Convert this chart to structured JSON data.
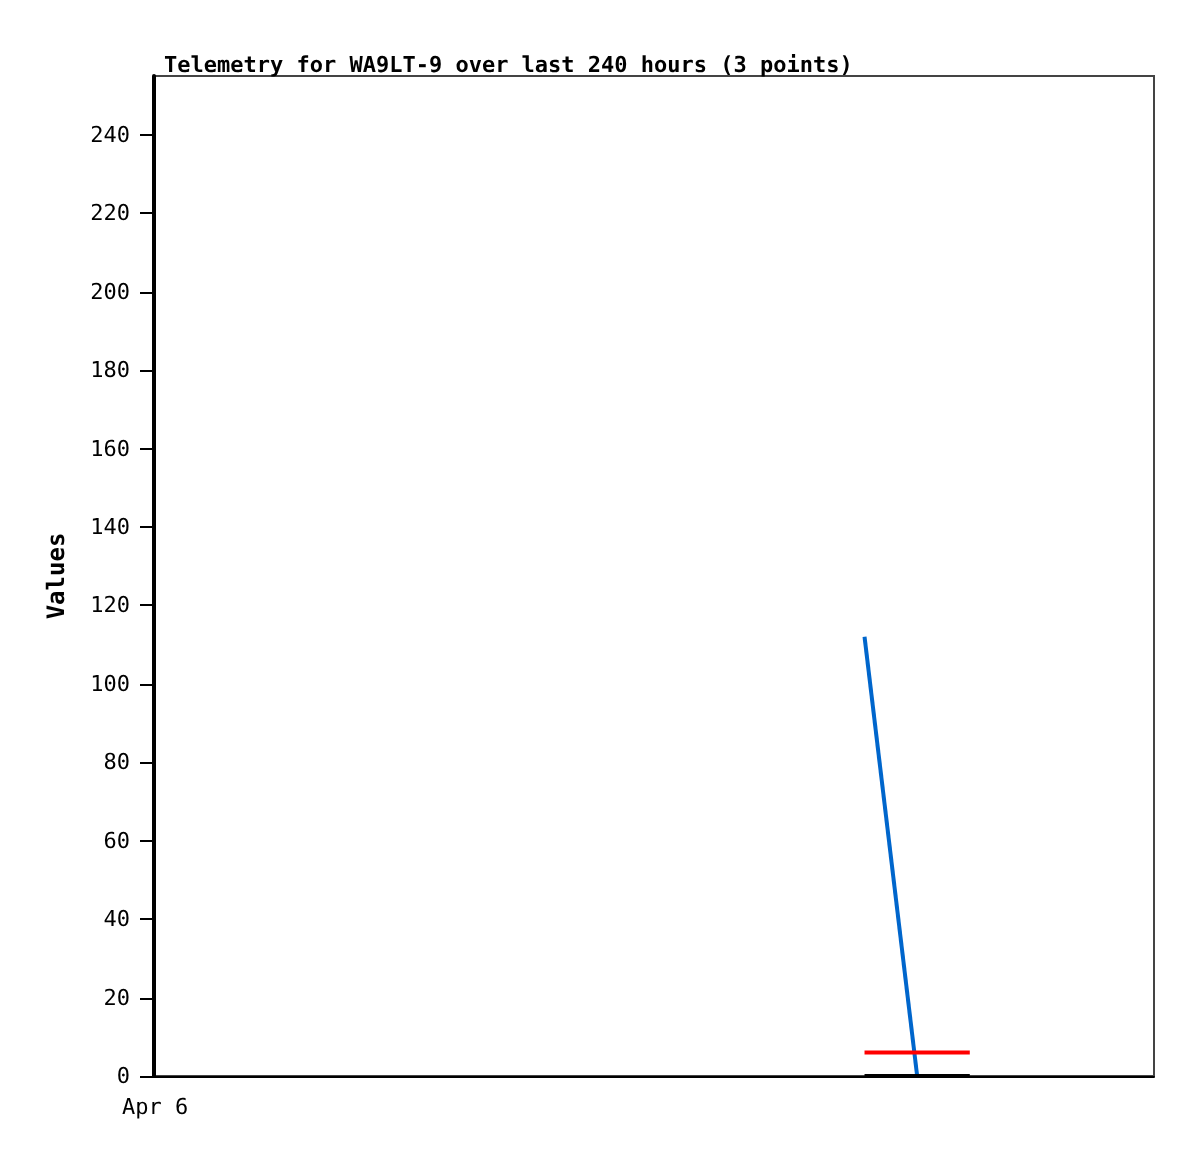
{
  "chart_data": {
    "type": "line",
    "title": "Telemetry for WA9LT-9 over last 240 hours (3 points)",
    "ylabel": "Values",
    "categories": [
      null,
      null,
      null,
      null,
      null,
      null,
      null,
      null,
      null,
      null,
      null,
      null,
      null,
      null,
      null,
      null,
      null,
      null,
      null
    ],
    "series": [
      {
        "color": "#0066cc",
        "values": [
          null,
          null,
          null,
          null,
          null,
          null,
          null,
          null,
          null,
          null,
          null,
          null,
          null,
          112,
          0,
          null,
          null,
          null,
          null
        ]
      },
      {
        "color": "#ff0000",
        "values": [
          null,
          null,
          null,
          null,
          null,
          null,
          null,
          null,
          null,
          null,
          null,
          null,
          null,
          6,
          6,
          6,
          null,
          null,
          null
        ]
      },
      {
        "color": "#000000",
        "values": [
          null,
          null,
          null,
          null,
          null,
          null,
          null,
          null,
          null,
          null,
          null,
          null,
          null,
          0,
          0,
          0,
          null,
          null,
          null
        ]
      }
    ],
    "annotations": [
      "Apr 6"
    ],
    "ylim": [
      0,
      255
    ],
    "yticks": [
      0,
      20,
      40,
      60,
      80,
      100,
      120,
      140,
      160,
      180,
      200,
      220,
      240
    ],
    "grid": false,
    "marker": "none",
    "line_style": "solid"
  }
}
